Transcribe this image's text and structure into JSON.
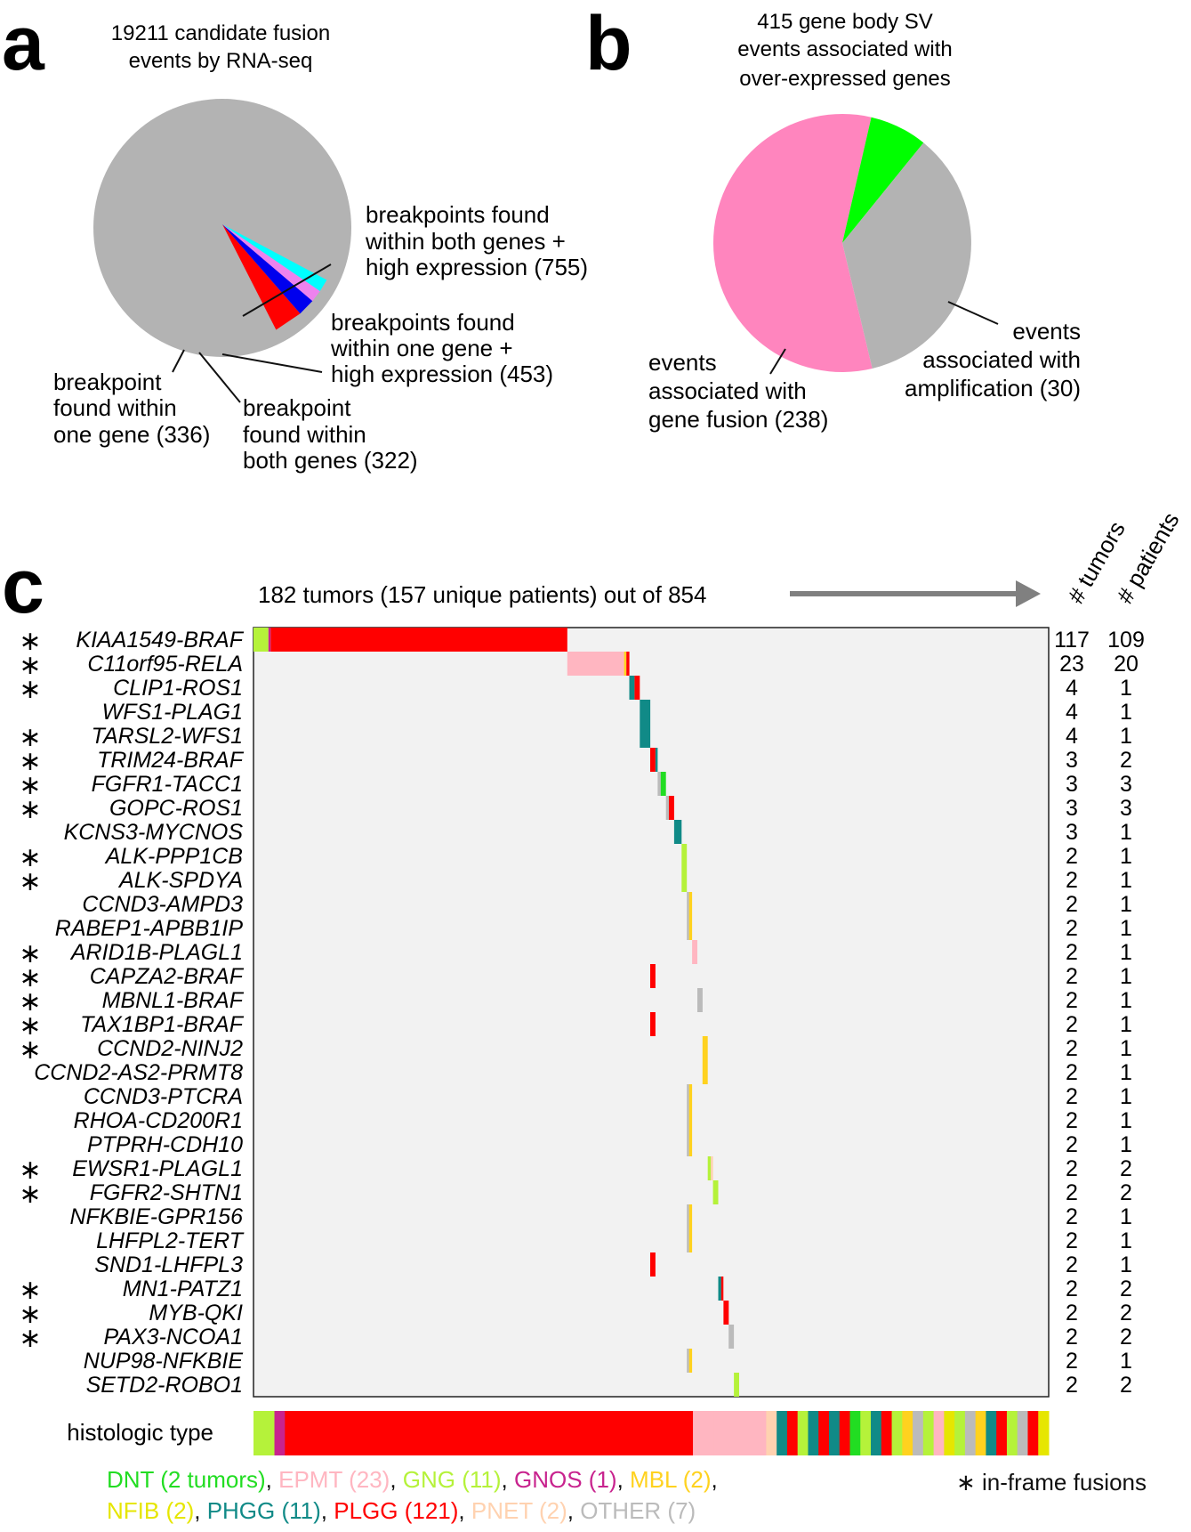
{
  "panel_a": {
    "letter": "a",
    "title": [
      "19211 candidate fusion",
      "events by RNA-seq"
    ],
    "labels": {
      "both_genes_high": [
        "breakpoints found",
        "within both genes +",
        "high expression (755)"
      ],
      "one_gene_high": [
        "breakpoints found",
        "within one gene +",
        "high expression (453)"
      ],
      "one_gene": [
        "breakpoint",
        "found within",
        "one gene (336)"
      ],
      "both_genes": [
        "breakpoint",
        "found within",
        "both genes (322)"
      ]
    }
  },
  "panel_b": {
    "letter": "b",
    "title": [
      "415 gene body SV",
      "events associated with",
      "over-expressed genes"
    ],
    "labels": {
      "fusion": [
        "events",
        "associated with",
        "gene fusion (238)"
      ],
      "amplification": [
        "events",
        "associated with",
        "amplification (30)"
      ]
    }
  },
  "panel_c": {
    "letter": "c",
    "title": "182 tumors (157 unique patients) out of 854",
    "col_header_tumors": "# tumors",
    "col_header_patients": "# patients",
    "histologic_label": "histologic type",
    "inframe_star": "∗",
    "inframe_label": "in-frame fusions"
  },
  "legend": [
    {
      "label": "DNT (2 tumors)",
      "color": "#22dd22"
    },
    {
      "label": "EPMT (23)",
      "color": "#ffb6c1"
    },
    {
      "label": "GNG (11)",
      "color": "#b5f23a"
    },
    {
      "label": "GNOS (1)",
      "color": "#c8238e"
    },
    {
      "label": "MBL (2)",
      "color": "#ffd21f"
    },
    {
      "label": "NFIB (2)",
      "color": "#e6e600"
    },
    {
      "label": "PHGG (11)",
      "color": "#108a87"
    },
    {
      "label": "PLGG (121)",
      "color": "#ff0000"
    },
    {
      "label": "PNET (2)",
      "color": "#ffd2b0"
    },
    {
      "label": "OTHER (7)",
      "color": "#bbbbbb"
    }
  ],
  "colors": {
    "grey": "#b3b3b3",
    "red": "#ff0000",
    "blue": "#0000ee",
    "violet": "#ee82ee",
    "cyan": "#00ffff",
    "pink": "#ff85be",
    "green": "#00ff00",
    "panelbg": "#f2f2f2",
    "arrow": "#808080"
  },
  "chart_data": [
    {
      "type": "pie",
      "title": "19211 candidate fusion events by RNA-seq",
      "labels": [
        "breakpoints found within both genes + high expression",
        "breakpoints found within one gene + high expression",
        "breakpoint found within both genes",
        "breakpoint found within one gene",
        "other"
      ],
      "values": [
        755,
        453,
        322,
        336,
        17345
      ]
    },
    {
      "type": "pie",
      "title": "415 gene body SV events associated with over-expressed genes",
      "labels": [
        "events associated with gene fusion",
        "events associated with amplification",
        "other"
      ],
      "values": [
        238,
        30,
        147
      ]
    },
    {
      "type": "heatmap",
      "title": "182 tumors (157 unique patients) out of 854",
      "fusions": [
        {
          "gene": "KIAA1549-BRAF",
          "inframe": true,
          "tumors": "117",
          "patients": "109"
        },
        {
          "gene": "C11orf95-RELA",
          "inframe": true,
          "tumors": "23",
          "patients": "20"
        },
        {
          "gene": "CLIP1-ROS1",
          "inframe": true,
          "tumors": "4",
          "patients": "1"
        },
        {
          "gene": "WFS1-PLAG1",
          "inframe": false,
          "tumors": "4",
          "patients": "1"
        },
        {
          "gene": "TARSL2-WFS1",
          "inframe": true,
          "tumors": "4",
          "patients": "1"
        },
        {
          "gene": "TRIM24-BRAF",
          "inframe": true,
          "tumors": "3",
          "patients": "2"
        },
        {
          "gene": "FGFR1-TACC1",
          "inframe": true,
          "tumors": "3",
          "patients": "3"
        },
        {
          "gene": "GOPC-ROS1",
          "inframe": true,
          "tumors": "3",
          "patients": "3"
        },
        {
          "gene": "KCNS3-MYCNOS",
          "inframe": false,
          "tumors": "3",
          "patients": "1"
        },
        {
          "gene": "ALK-PPP1CB",
          "inframe": true,
          "tumors": "2",
          "patients": "1"
        },
        {
          "gene": "ALK-SPDYA",
          "inframe": true,
          "tumors": "2",
          "patients": "1"
        },
        {
          "gene": "CCND3-AMPD3",
          "inframe": false,
          "tumors": "2",
          "patients": "1"
        },
        {
          "gene": "RABEP1-APBB1IP",
          "inframe": false,
          "tumors": "2",
          "patients": "1"
        },
        {
          "gene": "ARID1B-PLAGL1",
          "inframe": true,
          "tumors": "2",
          "patients": "1"
        },
        {
          "gene": "CAPZA2-BRAF",
          "inframe": true,
          "tumors": "2",
          "patients": "1"
        },
        {
          "gene": "MBNL1-BRAF",
          "inframe": true,
          "tumors": "2",
          "patients": "1"
        },
        {
          "gene": "TAX1BP1-BRAF",
          "inframe": true,
          "tumors": "2",
          "patients": "1"
        },
        {
          "gene": "CCND2-NINJ2",
          "inframe": true,
          "tumors": "2",
          "patients": "1"
        },
        {
          "gene": "CCND2-AS2-PRMT8",
          "inframe": false,
          "tumors": "2",
          "patients": "1"
        },
        {
          "gene": "CCND3-PTCRA",
          "inframe": false,
          "tumors": "2",
          "patients": "1"
        },
        {
          "gene": "RHOA-CD200R1",
          "inframe": false,
          "tumors": "2",
          "patients": "1"
        },
        {
          "gene": "PTPRH-CDH10",
          "inframe": false,
          "tumors": "2",
          "patients": "1"
        },
        {
          "gene": "EWSR1-PLAGL1",
          "inframe": true,
          "tumors": "2",
          "patients": "2"
        },
        {
          "gene": "FGFR2-SHTN1",
          "inframe": true,
          "tumors": "2",
          "patients": "2"
        },
        {
          "gene": "NFKBIE-GPR156",
          "inframe": false,
          "tumors": "2",
          "patients": "1"
        },
        {
          "gene": "LHFPL2-TERT",
          "inframe": false,
          "tumors": "2",
          "patients": "1"
        },
        {
          "gene": "SND1-LHFPL3",
          "inframe": false,
          "tumors": "2",
          "patients": "1"
        },
        {
          "gene": "MN1-PATZ1",
          "inframe": true,
          "tumors": "2",
          "patients": "2"
        },
        {
          "gene": "MYB-QKI",
          "inframe": true,
          "tumors": "2",
          "patients": "2"
        },
        {
          "gene": "PAX3-NCOA1",
          "inframe": true,
          "tumors": "2",
          "patients": "2"
        },
        {
          "gene": "NUP98-NFKBIE",
          "inframe": false,
          "tumors": "2",
          "patients": "1"
        },
        {
          "gene": "SETD2-ROBO1",
          "inframe": false,
          "tumors": "2",
          "patients": "2"
        }
      ],
      "cells": [
        {
          "row": 0,
          "c0": 0,
          "c1": 2,
          "type": "GNG"
        },
        {
          "row": 0,
          "c0": 2,
          "c1": 2.3,
          "type": "GNOS"
        },
        {
          "row": 0,
          "c0": 2.3,
          "c1": 42,
          "type": "PLGG"
        },
        {
          "row": 1,
          "c0": 42,
          "c1": 49.6,
          "type": "EPMT"
        },
        {
          "row": 1,
          "c0": 49.6,
          "c1": 49.9,
          "type": "MBL"
        },
        {
          "row": 1,
          "c0": 49.9,
          "c1": 50.3,
          "type": "PLGG"
        },
        {
          "row": 2,
          "c0": 50.3,
          "c1": 51,
          "type": "PHGG"
        },
        {
          "row": 2,
          "c0": 51,
          "c1": 51.7,
          "type": "PLGG"
        },
        {
          "row": 3,
          "c0": 51.7,
          "c1": 53.1,
          "type": "PHGG"
        },
        {
          "row": 4,
          "c0": 51.7,
          "c1": 53.1,
          "type": "PHGG"
        },
        {
          "row": 5,
          "c0": 53.1,
          "c1": 53.8,
          "type": "PLGG"
        },
        {
          "row": 5,
          "c0": 53.8,
          "c1": 54.1,
          "type": "PHGG"
        },
        {
          "row": 6,
          "c0": 54.1,
          "c1": 54.5,
          "type": "OTHER"
        },
        {
          "row": 6,
          "c0": 54.5,
          "c1": 55.2,
          "type": "DNT"
        },
        {
          "row": 7,
          "c0": 55.2,
          "c1": 55.6,
          "type": "OTHER"
        },
        {
          "row": 7,
          "c0": 55.6,
          "c1": 56.3,
          "type": "PLGG"
        },
        {
          "row": 8,
          "c0": 56.3,
          "c1": 57.3,
          "type": "PHGG"
        },
        {
          "row": 9,
          "c0": 57.3,
          "c1": 58,
          "type": "GNG"
        },
        {
          "row": 10,
          "c0": 57.3,
          "c1": 58,
          "type": "GNG"
        },
        {
          "row": 11,
          "c0": 58,
          "c1": 58.3,
          "type": "OTHER"
        },
        {
          "row": 11,
          "c0": 58.3,
          "c1": 58.7,
          "type": "MBL"
        },
        {
          "row": 12,
          "c0": 58,
          "c1": 58.3,
          "type": "OTHER"
        },
        {
          "row": 12,
          "c0": 58.3,
          "c1": 58.7,
          "type": "MBL"
        },
        {
          "row": 13,
          "c0": 58.7,
          "c1": 59.4,
          "type": "EPMT"
        },
        {
          "row": 14,
          "c0": 53.1,
          "c1": 53.8,
          "type": "PLGG"
        },
        {
          "row": 15,
          "c0": 59.4,
          "c1": 60.1,
          "type": "OTHER"
        },
        {
          "row": 16,
          "c0": 53.1,
          "c1": 53.8,
          "type": "PLGG"
        },
        {
          "row": 17,
          "c0": 60.1,
          "c1": 60.8,
          "type": "MBL"
        },
        {
          "row": 18,
          "c0": 60.1,
          "c1": 60.8,
          "type": "MBL"
        },
        {
          "row": 19,
          "c0": 58,
          "c1": 58.3,
          "type": "OTHER"
        },
        {
          "row": 19,
          "c0": 58.3,
          "c1": 58.7,
          "type": "MBL"
        },
        {
          "row": 20,
          "c0": 58,
          "c1": 58.3,
          "type": "OTHER"
        },
        {
          "row": 20,
          "c0": 58.3,
          "c1": 58.7,
          "type": "MBL"
        },
        {
          "row": 21,
          "c0": 58,
          "c1": 58.3,
          "type": "OTHER"
        },
        {
          "row": 21,
          "c0": 58.3,
          "c1": 58.7,
          "type": "MBL"
        },
        {
          "row": 22,
          "c0": 60.8,
          "c1": 61.2,
          "type": "GNG"
        },
        {
          "row": 22,
          "c0": 61.2,
          "c1": 61.5,
          "type": "PNET"
        },
        {
          "row": 23,
          "c0": 61.5,
          "c1": 62.2,
          "type": "GNG"
        },
        {
          "row": 24,
          "c0": 58,
          "c1": 58.3,
          "type": "OTHER"
        },
        {
          "row": 24,
          "c0": 58.3,
          "c1": 58.7,
          "type": "MBL"
        },
        {
          "row": 25,
          "c0": 58,
          "c1": 58.3,
          "type": "OTHER"
        },
        {
          "row": 25,
          "c0": 58.3,
          "c1": 58.7,
          "type": "MBL"
        },
        {
          "row": 26,
          "c0": 53.1,
          "c1": 53.8,
          "type": "PLGG"
        },
        {
          "row": 27,
          "c0": 62.2,
          "c1": 62.6,
          "type": "PHGG"
        },
        {
          "row": 27,
          "c0": 62.6,
          "c1": 62.9,
          "type": "PLGG"
        },
        {
          "row": 28,
          "c0": 62.9,
          "c1": 63.6,
          "type": "PLGG"
        },
        {
          "row": 29,
          "c0": 63.6,
          "c1": 64.3,
          "type": "OTHER"
        },
        {
          "row": 30,
          "c0": 58,
          "c1": 58.3,
          "type": "OTHER"
        },
        {
          "row": 30,
          "c0": 58.3,
          "c1": 58.7,
          "type": "MBL"
        },
        {
          "row": 31,
          "c0": 64.3,
          "c1": 65,
          "type": "GNG"
        }
      ],
      "histologic_strip": [
        "GNG",
        "GNG",
        "GNOS",
        "PLGG",
        "PLGG",
        "PLGG",
        "PLGG",
        "PLGG",
        "PLGG",
        "PLGG",
        "PLGG",
        "PLGG",
        "PLGG",
        "PLGG",
        "PLGG",
        "PLGG",
        "PLGG",
        "PLGG",
        "PLGG",
        "PLGG",
        "PLGG",
        "PLGG",
        "PLGG",
        "PLGG",
        "PLGG",
        "PLGG",
        "PLGG",
        "PLGG",
        "PLGG",
        "PLGG",
        "PLGG",
        "PLGG",
        "PLGG",
        "PLGG",
        "PLGG",
        "PLGG",
        "PLGG",
        "PLGG",
        "PLGG",
        "PLGG",
        "PLGG",
        "PLGG",
        "EPMT",
        "EPMT",
        "EPMT",
        "EPMT",
        "EPMT",
        "EPMT",
        "EPMT",
        "PNET",
        "PHGG",
        "PLGG",
        "GNG",
        "PHGG",
        "PLGG",
        "PHGG",
        "PLGG",
        "DNT",
        "GNG",
        "PHGG",
        "PLGG",
        "GNG",
        "MBL",
        "OTHER",
        "GNG",
        "EPMT",
        "NFIB",
        "GNG",
        "OTHER",
        "MBL",
        "PHGG",
        "PLGG",
        "GNG",
        "OTHER",
        "PLGG",
        "NFIB"
      ]
    }
  ]
}
